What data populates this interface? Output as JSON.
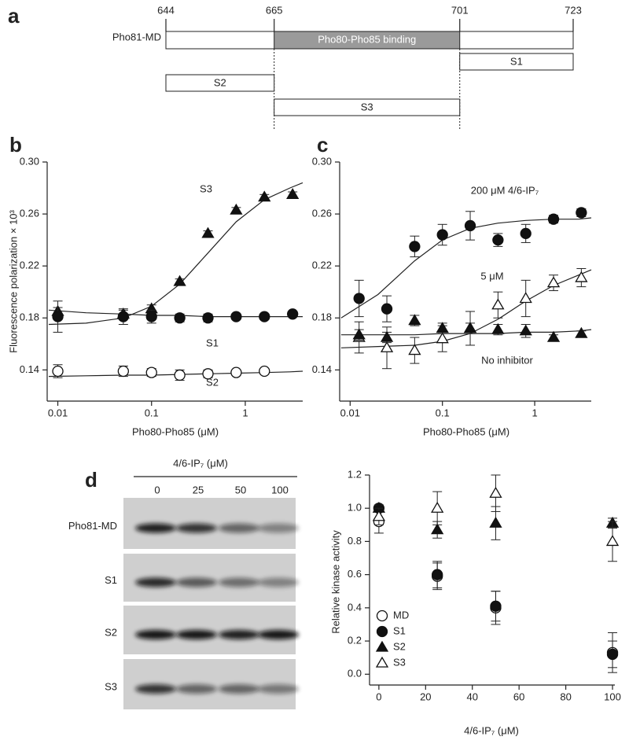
{
  "panel_a": {
    "label": "a",
    "positions": [
      644,
      665,
      701,
      723
    ],
    "full": {
      "name": "Pho81-MD",
      "start": 644,
      "end": 723
    },
    "binding": {
      "label": "Pho80-Pho85  binding",
      "start": 665,
      "end": 701
    },
    "fragments": [
      {
        "name": "S1",
        "start": 701,
        "end": 723
      },
      {
        "name": "S2",
        "start": 644,
        "end": 665
      },
      {
        "name": "S3",
        "start": 665,
        "end": 701
      }
    ]
  },
  "panel_d_blot": {
    "title": "4/6-IP₇ (μM)",
    "columns": [
      "0",
      "25",
      "50",
      "100"
    ],
    "rows": [
      "Pho81-MD",
      "S1",
      "S2",
      "S3"
    ]
  },
  "chart_data": [
    {
      "type": "scatter",
      "label": "b",
      "x_label": "Pho80-Pho85 (μM)",
      "y_label": "Fluorescence polarization × 10³",
      "log_x": true,
      "xlim": [
        0.0077,
        4.1
      ],
      "xticks": [
        0.01,
        0.1,
        1
      ],
      "ylim": [
        0.116,
        0.3
      ],
      "yticks": [
        0.14,
        0.18,
        0.22,
        0.26,
        {
          "value": 0.3,
          "label": "0.30"
        }
      ],
      "x": [
        0.01,
        0.05,
        0.1,
        0.2,
        0.4,
        0.8,
        1.6,
        3.2
      ],
      "series": [
        {
          "name": "S3",
          "marker": "triangle",
          "filled": true,
          "color": "#111111",
          "values": [
            0.185,
            0.183,
            0.187,
            0.208,
            0.245,
            0.263,
            0.273,
            0.275
          ],
          "errors": [
            0.003,
            0.003,
            0.003,
            0.002,
            0.002,
            0.002,
            0.002,
            0.002
          ]
        },
        {
          "name": "S1",
          "marker": "circle",
          "filled": true,
          "color": "#111111",
          "values": [
            0.181,
            0.181,
            0.181,
            0.18,
            0.18,
            0.181,
            0.181,
            0.183
          ],
          "errors": [
            0.012,
            0.006,
            0.005,
            0.003,
            0.003,
            0.002,
            0.002,
            0.002
          ]
        },
        {
          "name": "S2",
          "marker": "circle",
          "filled": false,
          "color": "#111111",
          "values": [
            0.139,
            0.139,
            0.138,
            0.136,
            0.137,
            0.138,
            0.139,
            null
          ],
          "errors": [
            0.005,
            0.004,
            0.003,
            0.004,
            0.003,
            0.002,
            0.002,
            null
          ]
        }
      ],
      "fits": [
        {
          "x": [
            0.008,
            0.02,
            0.05,
            0.1,
            0.2,
            0.4,
            0.8,
            1.6,
            3,
            4.1
          ],
          "values": [
            0.175,
            0.176,
            0.18,
            0.189,
            0.206,
            0.23,
            0.254,
            0.271,
            0.28,
            0.284
          ]
        },
        {
          "x": [
            0.008,
            0.02,
            0.05,
            0.1,
            0.2,
            0.4,
            0.8,
            1.6,
            3,
            4.1
          ],
          "values": [
            0.186,
            0.184,
            0.183,
            0.182,
            0.182,
            0.181,
            0.181,
            0.181,
            0.181,
            0.181
          ]
        },
        {
          "x": [
            0.008,
            0.02,
            0.05,
            0.1,
            0.2,
            0.4,
            0.8,
            1.6,
            3,
            4.1
          ],
          "values": [
            0.135,
            0.1355,
            0.136,
            0.136,
            0.1365,
            0.137,
            0.1375,
            0.138,
            0.1385,
            0.139
          ]
        }
      ]
    },
    {
      "type": "scatter",
      "label": "c",
      "x_label": "Pho80-Pho85 (μM)",
      "log_x": true,
      "xlim": [
        0.0077,
        4.1
      ],
      "xticks": [
        0.01,
        0.1,
        1
      ],
      "ylim": [
        0.116,
        0.3
      ],
      "yticks": [
        0.14,
        0.18,
        0.22,
        0.26,
        {
          "value": 0.3,
          "label": "0.30"
        }
      ],
      "x": [
        0.0125,
        0.025,
        0.05,
        0.1,
        0.2,
        0.4,
        0.8,
        1.6,
        3.2
      ],
      "series": [
        {
          "name": "200 μM 4/6-IP₇",
          "marker": "circle",
          "filled": true,
          "color": "#111111",
          "values": [
            0.195,
            0.187,
            0.235,
            0.244,
            0.251,
            0.24,
            0.245,
            0.256,
            0.261
          ],
          "errors": [
            0.014,
            0.01,
            0.008,
            0.008,
            0.011,
            0.005,
            0.007,
            0.003,
            0.003
          ]
        },
        {
          "name": "5 μM",
          "marker": "triangle",
          "filled": false,
          "color": "#111111",
          "values": [
            0.165,
            0.157,
            0.155,
            0.164,
            0.172,
            0.19,
            0.195,
            0.207,
            0.211
          ],
          "errors": [
            0.012,
            0.016,
            0.01,
            0.01,
            0.013,
            0.01,
            0.014,
            0.006,
            0.007
          ]
        },
        {
          "name": "No inhibitor",
          "marker": "triangle",
          "filled": true,
          "color": "#111111",
          "values": [
            0.167,
            0.165,
            0.178,
            0.172,
            0.172,
            0.171,
            0.17,
            0.165,
            0.168
          ],
          "errors": [
            0.004,
            0.004,
            0.004,
            0.004,
            0.004,
            0.004,
            0.005,
            0.002,
            0.002
          ]
        }
      ],
      "fits": [
        {
          "x": [
            0.008,
            0.02,
            0.05,
            0.1,
            0.2,
            0.4,
            0.8,
            1.6,
            3,
            4.1
          ],
          "values": [
            0.18,
            0.198,
            0.224,
            0.24,
            0.249,
            0.253,
            0.255,
            0.256,
            0.256,
            0.257
          ]
        },
        {
          "x": [
            0.008,
            0.02,
            0.05,
            0.1,
            0.2,
            0.4,
            0.8,
            1.6,
            3,
            4.1
          ],
          "values": [
            0.157,
            0.158,
            0.159,
            0.162,
            0.168,
            0.179,
            0.193,
            0.205,
            0.213,
            0.217
          ]
        },
        {
          "x": [
            0.008,
            0.02,
            0.05,
            0.1,
            0.2,
            0.4,
            0.8,
            1.6,
            3,
            4.1
          ],
          "values": [
            0.167,
            0.167,
            0.167,
            0.168,
            0.168,
            0.168,
            0.169,
            0.169,
            0.17,
            0.171
          ]
        }
      ]
    },
    {
      "type": "scatter",
      "label": "d",
      "x_label": "4/6-IP₇ (μM)",
      "y_label": "Relative kinase activity",
      "log_x": false,
      "xlim": [
        -4,
        101
      ],
      "xticks": [
        0,
        20,
        40,
        60,
        80,
        100
      ],
      "ylim": [
        -0.065,
        1.2
      ],
      "yticks": [
        {
          "value": 0,
          "label": "0.0"
        },
        0.2,
        0.4,
        0.6,
        0.8,
        {
          "value": 1,
          "label": "1.0"
        },
        1.2
      ],
      "legend": "lower left",
      "x": [
        0,
        25,
        50,
        100
      ],
      "series": [
        {
          "name": "MD",
          "marker": "circle",
          "filled": false,
          "color": "#111111",
          "values": [
            0.92,
            0.59,
            0.4,
            0.13
          ],
          "errors": [
            0.07,
            0.08,
            0.1,
            0.12
          ]
        },
        {
          "name": "S1",
          "marker": "circle",
          "filled": true,
          "color": "#111111",
          "values": [
            1.0,
            0.6,
            0.41,
            0.12
          ],
          "errors": [
            0.02,
            0.08,
            0.09,
            0.08
          ]
        },
        {
          "name": "S2",
          "marker": "triangle",
          "filled": true,
          "color": "#111111",
          "values": [
            1.0,
            0.87,
            0.91,
            0.91
          ],
          "errors": [
            0.02,
            0.05,
            0.1,
            0.03
          ]
        },
        {
          "name": "S3",
          "marker": "triangle",
          "filled": false,
          "color": "#111111",
          "values": [
            0.95,
            1.0,
            1.09,
            0.8
          ],
          "errors": [
            0.05,
            0.1,
            0.11,
            0.12
          ]
        }
      ]
    }
  ]
}
